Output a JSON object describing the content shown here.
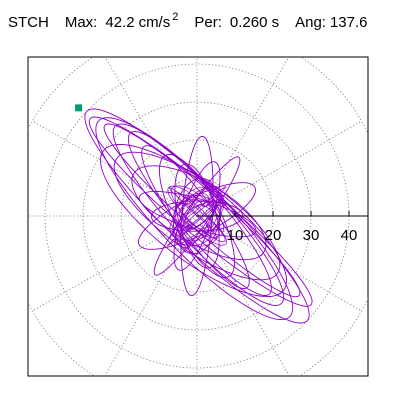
{
  "header": {
    "station": "STCH",
    "max_label": "Max:",
    "max_value": "42.2",
    "max_unit": "cm/s",
    "max_unit_exp": "2",
    "per_label": "Per:",
    "per_value": "0.260 s",
    "ang_label": "Ang:",
    "ang_value": "137.6"
  },
  "chart_data": {
    "type": "polar",
    "radial_ticks": [
      "10",
      "20",
      "30",
      "40"
    ],
    "radial_tick_values": [
      10,
      20,
      30,
      40
    ],
    "rings": [
      10,
      20,
      30,
      40,
      50
    ],
    "spokes_deg": [
      0,
      30,
      60,
      90,
      120,
      150,
      180,
      210,
      240,
      270,
      300,
      330
    ],
    "max_value": 42.2,
    "max_angle_deg": 137.6,
    "trace_color": "#8e00c8",
    "marker_color": "#009e73",
    "grid": "dotted"
  }
}
